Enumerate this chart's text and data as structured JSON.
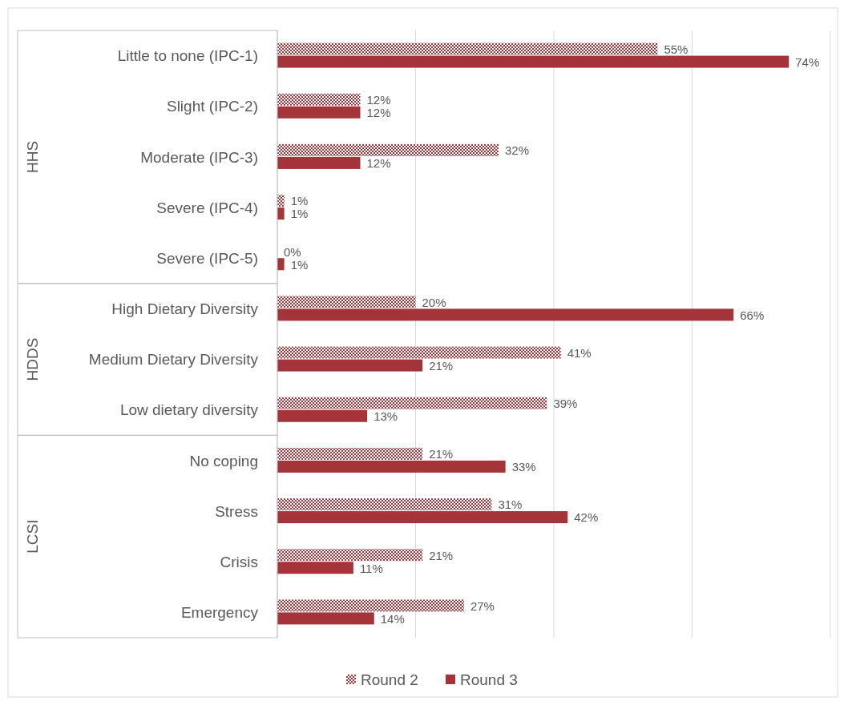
{
  "chart_data": {
    "type": "bar",
    "orientation": "horizontal",
    "categories": [
      "Little to none (IPC-1)",
      "Slight (IPC-2)",
      "Moderate (IPC-3)",
      "Severe (IPC-4)",
      "Severe (IPC-5)",
      "High Dietary Diversity",
      "Medium Dietary Diversity",
      "Low dietary diversity",
      "No coping",
      "Stress",
      "Crisis",
      "Emergency"
    ],
    "series": [
      {
        "name": "Round 2",
        "color": "#a4343a",
        "values": [
          55,
          12,
          32,
          1,
          0,
          20,
          41,
          39,
          21,
          31,
          21,
          27
        ],
        "value_labels": [
          "55%",
          "12%",
          "32%",
          "1%",
          "0%",
          "20%",
          "41%",
          "39%",
          "21%",
          "31%",
          "21%",
          "27%"
        ]
      },
      {
        "name": "Round 3",
        "color": "#a4343a",
        "values": [
          74,
          12,
          12,
          1,
          1,
          66,
          21,
          13,
          33,
          42,
          11,
          14
        ],
        "value_labels": [
          "74%",
          "12%",
          "12%",
          "1%",
          "1%",
          "66%",
          "21%",
          "13%",
          "33%",
          "42%",
          "11%",
          "14%"
        ]
      }
    ],
    "annotations": [
      "HHS",
      "HDDS",
      "LCSI"
    ],
    "xlim": [
      0,
      80
    ],
    "xticks": [
      {
        "value": 0,
        "label": null
      },
      {
        "value": 20,
        "label": null
      },
      {
        "value": 40,
        "label": null
      },
      {
        "value": 60,
        "label": null
      },
      {
        "value": 80,
        "label": null
      }
    ],
    "tick_labels": "y",
    "grid": "x",
    "legend": "bottom"
  }
}
